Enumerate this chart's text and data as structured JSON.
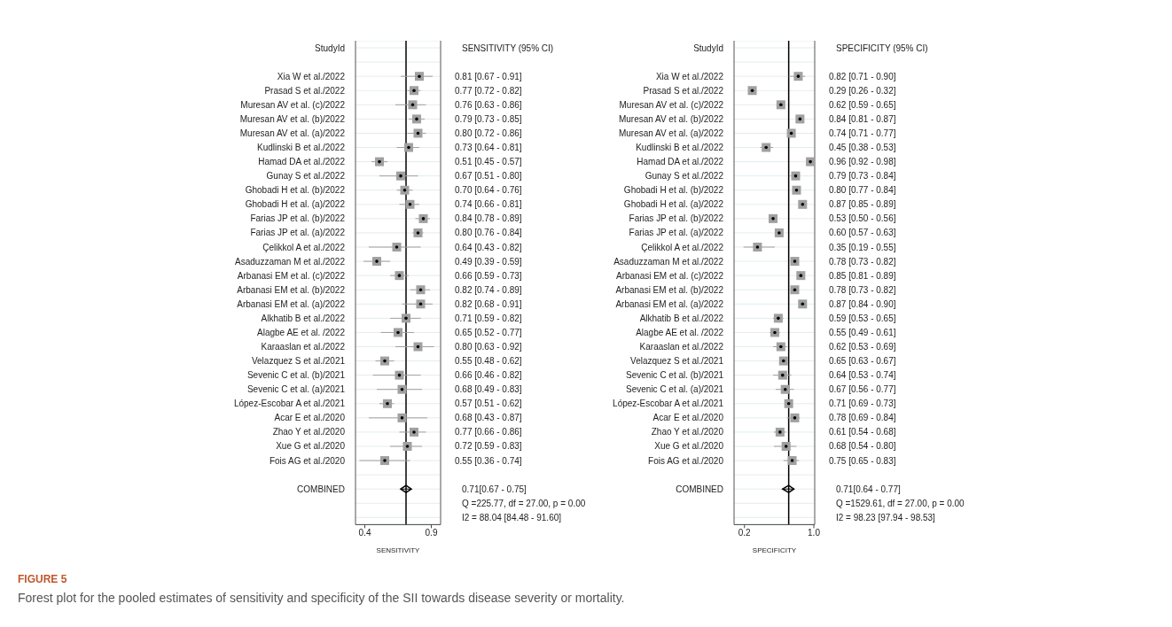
{
  "chart_data": [
    {
      "type": "scatter",
      "orientation": "horizontal",
      "ylabel": "StudyId",
      "xlabel": "SENSITIVITY",
      "xlim": [
        0.33,
        0.97
      ],
      "xticks": [
        0.4,
        0.9
      ],
      "grid": "y",
      "annotations": [
        "SENSITIVITY (95% CI)",
        "0.71[0.67 - 0.75]",
        "Q =225.77, df = 27.00, p =  0.00",
        "I2 = 88.04 [84.48 - 91.60]",
        "FIGURE 5",
        "Forest plot for the pooled estimates of sensitivity and specificity of the SII towards disease severity or mortality."
      ],
      "ref_lines": [
        {
          "axis": "x",
          "value": 0.71,
          "color": "#000000"
        }
      ],
      "categories": [
        "Xia W et al./2022",
        "Prasad S et al./2022",
        "Muresan AV et al. (c)/2022",
        "Muresan AV et al. (b)/2022",
        "Muresan AV et al. (a)/2022",
        "Kudlinski B et al./2022",
        "Hamad DA et al./2022",
        "Gunay S et al./2022",
        "Ghobadi H et al. (b)/2022",
        "Ghobadi H et al. (a)/2022",
        "Farias JP et al. (b)/2022",
        "Farias JP et al. (a)/2022",
        "Çelikkol A et al./2022",
        "Asaduzzaman M et al./2022",
        "Arbanasi EM et al. (c)/2022",
        "Arbanasi EM et al. (b)/2022",
        "Arbanasi EM et al. (a)/2022",
        "Alkhatib B et al./2022",
        "Alagbe AE et al. /2022",
        "Karaaslan et al./2022",
        "Velazquez S et al./2021",
        "Sevenic C et al. (b)/2021",
        "Sevenic C et al. (a)/2021",
        "López-Escobar A et al./2021",
        "Acar E et al./2020",
        "Zhao Y et al./2020",
        "Xue G et al./2020",
        "Fois AG et al./2020",
        null,
        "COMBINED"
      ],
      "series": [
        {
          "color": "#a0a0a0",
          "marker": "square",
          "values": [
            0.81,
            0.77,
            0.76,
            0.79,
            0.8,
            0.73,
            0.51,
            0.67,
            0.7,
            0.74,
            0.84,
            0.8,
            0.64,
            0.49,
            0.66,
            0.82,
            0.82,
            0.71,
            0.65,
            0.8,
            0.55,
            0.66,
            0.68,
            0.57,
            0.68,
            0.77,
            0.72,
            0.55,
            null,
            null
          ],
          "errors": [
            [
              0.67,
              0.91
            ],
            [
              0.72,
              0.82
            ],
            [
              0.63,
              0.86
            ],
            [
              0.73,
              0.85
            ],
            [
              0.72,
              0.86
            ],
            [
              0.64,
              0.81
            ],
            [
              0.45,
              0.57
            ],
            [
              0.51,
              0.8
            ],
            [
              0.64,
              0.76
            ],
            [
              0.66,
              0.81
            ],
            [
              0.78,
              0.89
            ],
            [
              0.76,
              0.84
            ],
            [
              0.43,
              0.82
            ],
            [
              0.39,
              0.59
            ],
            [
              0.59,
              0.73
            ],
            [
              0.74,
              0.89
            ],
            [
              0.68,
              0.91
            ],
            [
              0.59,
              0.82
            ],
            [
              0.52,
              0.77
            ],
            [
              0.63,
              0.92
            ],
            [
              0.48,
              0.62
            ],
            [
              0.46,
              0.82
            ],
            [
              0.49,
              0.83
            ],
            [
              0.51,
              0.62
            ],
            [
              0.43,
              0.87
            ],
            [
              0.66,
              0.86
            ],
            [
              0.59,
              0.83
            ],
            [
              0.36,
              0.74
            ],
            null,
            null
          ],
          "value_labels": [
            "0.81 [0.67 - 0.91]",
            "0.77 [0.72 - 0.82]",
            "0.76 [0.63 - 0.86]",
            "0.79 [0.73 - 0.85]",
            "0.80 [0.72 - 0.86]",
            "0.73 [0.64 - 0.81]",
            "0.51 [0.45 - 0.57]",
            "0.67 [0.51 - 0.80]",
            "0.70 [0.64 - 0.76]",
            "0.74 [0.66 - 0.81]",
            "0.84 [0.78 - 0.89]",
            "0.80 [0.76 - 0.84]",
            "0.64 [0.43 - 0.82]",
            "0.49 [0.39 - 0.59]",
            "0.66 [0.59 - 0.73]",
            "0.82 [0.74 - 0.89]",
            "0.82 [0.68 - 0.91]",
            "0.71 [0.59 - 0.82]",
            "0.65 [0.52 - 0.77]",
            "0.80 [0.63 - 0.92]",
            "0.55 [0.48 - 0.62]",
            "0.66 [0.46 - 0.82]",
            "0.68 [0.49 - 0.83]",
            "0.57 [0.51 - 0.62]",
            "0.68 [0.43 - 0.87]",
            "0.77 [0.66 - 0.86]",
            "0.72 [0.59 - 0.83]",
            "0.55 [0.36 - 0.74]",
            null,
            null
          ]
        },
        {
          "color": "#000000",
          "marker": "diamond",
          "values": [
            null,
            null,
            null,
            null,
            null,
            null,
            null,
            null,
            null,
            null,
            null,
            null,
            null,
            null,
            null,
            null,
            null,
            null,
            null,
            null,
            null,
            null,
            null,
            null,
            null,
            null,
            null,
            null,
            null,
            0.71
          ],
          "errors": [
            null,
            null,
            null,
            null,
            null,
            null,
            null,
            null,
            null,
            null,
            null,
            null,
            null,
            null,
            null,
            null,
            null,
            null,
            null,
            null,
            null,
            null,
            null,
            null,
            null,
            null,
            null,
            null,
            null,
            [
              0.67,
              0.75
            ]
          ]
        }
      ]
    },
    {
      "type": "scatter",
      "orientation": "horizontal",
      "ylabel": "StudyId",
      "xlabel": "SPECIFICITY",
      "xlim": [
        0.08,
        1.01
      ],
      "xticks": [
        0.2,
        {
          "value": 1,
          "label": "1.0"
        }
      ],
      "grid": "y",
      "annotations": [
        "SPECIFICITY (95% CI)",
        "0.71[0.64 - 0.77]",
        "Q =1529.61, df = 27.00, p =  0.00",
        "I2 = 98.23 [97.94 - 98.53]"
      ],
      "ref_lines": [
        {
          "axis": "x",
          "value": 0.71,
          "color": "#000000"
        }
      ],
      "categories": [
        "Xia W et al./2022",
        "Prasad S et al./2022",
        "Muresan AV et al. (c)/2022",
        "Muresan AV et al. (b)/2022",
        "Muresan AV et al. (a)/2022",
        "Kudlinski B et al./2022",
        "Hamad DA et al./2022",
        "Gunay S et al./2022",
        "Ghobadi H et al. (b)/2022",
        "Ghobadi H et al. (a)/2022",
        "Farias JP et al. (b)/2022",
        "Farias JP et al. (a)/2022",
        "Çelikkol A et al./2022",
        "Asaduzzaman M et al./2022",
        "Arbanasi EM et al. (c)/2022",
        "Arbanasi EM et al. (b)/2022",
        "Arbanasi EM et al. (a)/2022",
        "Alkhatib B et al./2022",
        "Alagbe AE et al. /2022",
        "Karaaslan et al./2022",
        "Velazquez S et al./2021",
        "Sevenic C et al. (b)/2021",
        "Sevenic C et al. (a)/2021",
        "López-Escobar A et al./2021",
        "Acar E et al./2020",
        "Zhao Y et al./2020",
        "Xue G et al./2020",
        "Fois AG et al./2020",
        null,
        "COMBINED"
      ],
      "series": [
        {
          "color": "#a0a0a0",
          "marker": "square",
          "values": [
            0.82,
            0.29,
            0.62,
            0.84,
            0.74,
            0.45,
            0.96,
            0.79,
            0.8,
            0.87,
            0.53,
            0.6,
            0.35,
            0.78,
            0.85,
            0.78,
            0.87,
            0.59,
            0.55,
            0.62,
            0.65,
            0.64,
            0.67,
            0.71,
            0.78,
            0.61,
            0.68,
            0.75,
            null,
            null
          ],
          "errors": [
            [
              0.71,
              0.9
            ],
            [
              0.26,
              0.32
            ],
            [
              0.59,
              0.65
            ],
            [
              0.81,
              0.87
            ],
            [
              0.71,
              0.77
            ],
            [
              0.38,
              0.53
            ],
            [
              0.92,
              0.98
            ],
            [
              0.73,
              0.84
            ],
            [
              0.77,
              0.84
            ],
            [
              0.85,
              0.89
            ],
            [
              0.5,
              0.56
            ],
            [
              0.57,
              0.63
            ],
            [
              0.19,
              0.55
            ],
            [
              0.73,
              0.82
            ],
            [
              0.81,
              0.89
            ],
            [
              0.73,
              0.82
            ],
            [
              0.84,
              0.9
            ],
            [
              0.53,
              0.65
            ],
            [
              0.49,
              0.61
            ],
            [
              0.53,
              0.69
            ],
            [
              0.63,
              0.67
            ],
            [
              0.53,
              0.74
            ],
            [
              0.56,
              0.77
            ],
            [
              0.69,
              0.73
            ],
            [
              0.69,
              0.84
            ],
            [
              0.54,
              0.68
            ],
            [
              0.54,
              0.8
            ],
            [
              0.65,
              0.83
            ],
            null,
            null
          ],
          "value_labels": [
            "0.82 [0.71 - 0.90]",
            "0.29 [0.26 - 0.32]",
            "0.62 [0.59 - 0.65]",
            "0.84 [0.81 - 0.87]",
            "0.74 [0.71 - 0.77]",
            "0.45 [0.38 - 0.53]",
            "0.96 [0.92 - 0.98]",
            "0.79 [0.73 - 0.84]",
            "0.80 [0.77 - 0.84]",
            "0.87 [0.85 - 0.89]",
            "0.53 [0.50 - 0.56]",
            "0.60 [0.57 - 0.63]",
            "0.35 [0.19 - 0.55]",
            "0.78 [0.73 - 0.82]",
            "0.85 [0.81 - 0.89]",
            "0.78 [0.73 - 0.82]",
            "0.87 [0.84 - 0.90]",
            "0.59 [0.53 - 0.65]",
            "0.55 [0.49 - 0.61]",
            "0.62 [0.53 - 0.69]",
            "0.65 [0.63 - 0.67]",
            "0.64 [0.53 - 0.74]",
            "0.67 [0.56 - 0.77]",
            "0.71 [0.69 - 0.73]",
            "0.78 [0.69 - 0.84]",
            "0.61 [0.54 - 0.68]",
            "0.68 [0.54 - 0.80]",
            "0.75 [0.65 - 0.83]",
            null,
            null
          ]
        },
        {
          "color": "#000000",
          "marker": "diamond",
          "values": [
            null,
            null,
            null,
            null,
            null,
            null,
            null,
            null,
            null,
            null,
            null,
            null,
            null,
            null,
            null,
            null,
            null,
            null,
            null,
            null,
            null,
            null,
            null,
            null,
            null,
            null,
            null,
            null,
            null,
            0.71
          ],
          "errors": [
            null,
            null,
            null,
            null,
            null,
            null,
            null,
            null,
            null,
            null,
            null,
            null,
            null,
            null,
            null,
            null,
            null,
            null,
            null,
            null,
            null,
            null,
            null,
            null,
            null,
            null,
            null,
            null,
            null,
            [
              0.64,
              0.77
            ]
          ]
        }
      ]
    }
  ]
}
